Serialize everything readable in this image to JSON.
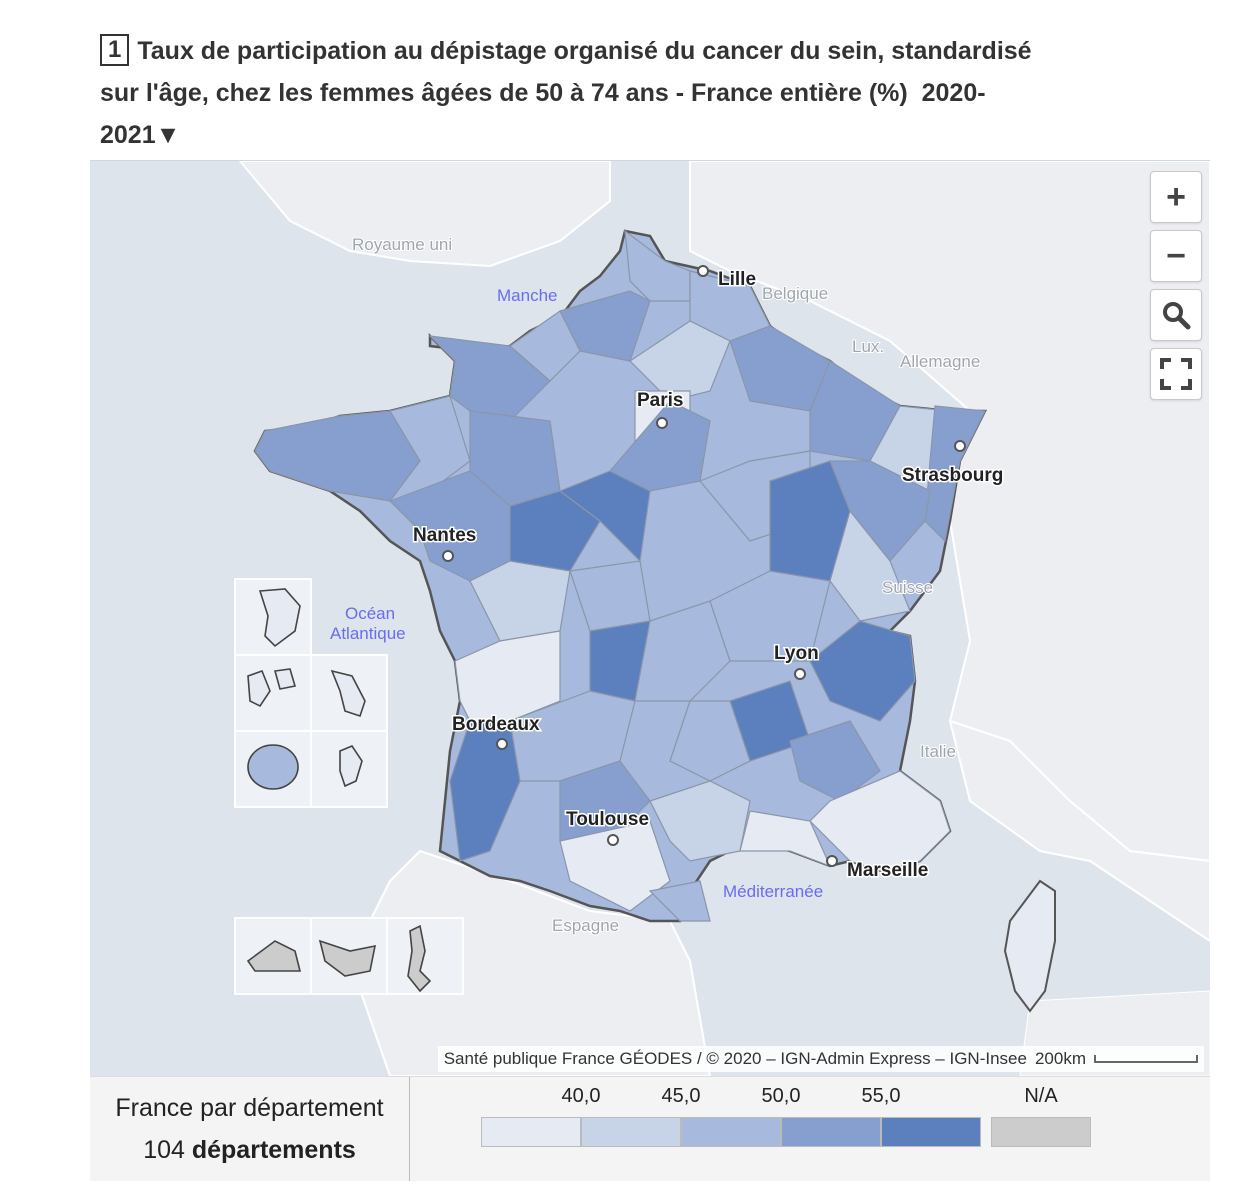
{
  "title": {
    "number": "1",
    "text": "Taux de participation au dépistage organisé du cancer du sein, standardisé sur l'âge, chez les femmes âgées de 50 à 74 ans - France entière (%)",
    "period": "2020-2021",
    "period_arrow": "▼"
  },
  "map": {
    "cities": {
      "lille": "Lille",
      "paris": "Paris",
      "strasbourg": "Strasbourg",
      "nantes": "Nantes",
      "lyon": "Lyon",
      "bordeaux": "Bordeaux",
      "toulouse": "Toulouse",
      "marseille": "Marseille"
    },
    "countries": {
      "royaume_uni": "Royaume uni",
      "belgique": "Belgique",
      "lux": "Lux.",
      "allemagne": "Allemagne",
      "suisse": "Suisse",
      "italie": "Italie",
      "espagne": "Espagne"
    },
    "seas": {
      "manche": "Manche",
      "ocean_line1": "Océan",
      "ocean_line2": "Atlantique",
      "mediterranee": "Méditerranée"
    },
    "controls": {
      "zoom_in": "+",
      "zoom_out": "−"
    },
    "attribution": "Santé publique France GÉODES / © 2020 – IGN-Admin Express – IGN-Insee",
    "scale_label": "200km",
    "colors": {
      "sea": "#dde4ec",
      "land": "#eceef1",
      "c1": "#e6ebf3",
      "c2": "#c7d3e6",
      "c3": "#a7b9dc",
      "c4": "#879fcf",
      "c5": "#5c7fbd",
      "na": "#cccccc"
    }
  },
  "legend": {
    "scope": "France par département",
    "count_number": "104",
    "count_unit": "départements",
    "ticks": [
      "40,0",
      "45,0",
      "50,0",
      "55,0"
    ],
    "na_label": "N/A"
  }
}
